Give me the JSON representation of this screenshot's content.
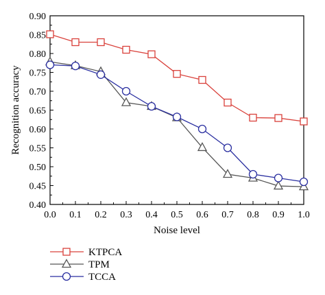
{
  "chart_data": {
    "type": "line",
    "xlabel": "Noise level",
    "ylabel": "Recognition accuracy",
    "xlim": [
      0.0,
      1.0
    ],
    "ylim": [
      0.4,
      0.9
    ],
    "x_ticks": [
      "0.0",
      "0.1",
      "0.2",
      "0.3",
      "0.4",
      "0.5",
      "0.6",
      "0.7",
      "0.8",
      "0.9",
      "1.0"
    ],
    "y_ticks": [
      "0.40",
      "0.45",
      "0.50",
      "0.55",
      "0.60",
      "0.65",
      "0.70",
      "0.75",
      "0.80",
      "0.85",
      "0.90"
    ],
    "grid": false,
    "legend_position": "bottom-left-below",
    "x": [
      0.0,
      0.1,
      0.2,
      0.3,
      0.4,
      0.5,
      0.6,
      0.7,
      0.8,
      0.9,
      1.0
    ],
    "series": [
      {
        "name": "KTPCA",
        "marker": "square",
        "color": "#d9403a",
        "values": [
          0.851,
          0.83,
          0.83,
          0.81,
          0.798,
          0.746,
          0.73,
          0.67,
          0.63,
          0.629,
          0.62
        ]
      },
      {
        "name": "TPM",
        "marker": "triangle",
        "color": "#555555",
        "values": [
          0.778,
          0.768,
          0.752,
          0.67,
          0.66,
          0.63,
          0.551,
          0.48,
          0.47,
          0.449,
          0.447
        ]
      },
      {
        "name": "TCCA",
        "marker": "circle",
        "color": "#2a2fa0",
        "values": [
          0.77,
          0.767,
          0.744,
          0.7,
          0.66,
          0.632,
          0.6,
          0.55,
          0.48,
          0.47,
          0.46
        ]
      }
    ]
  }
}
